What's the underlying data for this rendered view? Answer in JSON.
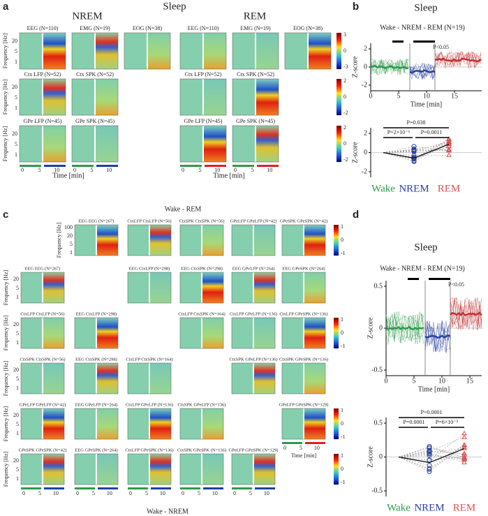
{
  "panel_a": {
    "label": "a",
    "title": "Sleep",
    "nrem": "NREM",
    "rem": "REM",
    "rows": [
      [
        "EEG (N=110)",
        "EMG (N=19)",
        "EOG (N=38)"
      ],
      [
        "Ctx LFP (N=52)",
        "Ctx SPK (N=52)"
      ],
      [
        "GPe LFP (N=45)",
        "GPe SPK (N=45)"
      ]
    ],
    "y_label": "Frequency [Hz]",
    "yticks": [
      "20",
      "5",
      "1"
    ],
    "x_label": "Time [min]",
    "xticks": [
      "0",
      "5",
      "10"
    ],
    "colorbars": [
      [
        "3",
        "0",
        "-3"
      ],
      [
        "2",
        "0",
        "-2"
      ],
      [
        "2",
        "0",
        "-2"
      ]
    ]
  },
  "panel_b": {
    "label": "b",
    "title": "Sleep",
    "subtitle": "Wake - NREM - REM (N=19)",
    "top": {
      "y_label": "Z-score",
      "yticks": [
        "2",
        "0",
        "-2"
      ],
      "x_label": "Time [min]",
      "xticks": [
        "0",
        "5",
        "10",
        "15"
      ],
      "annotation": "P<0.05"
    },
    "bottom": {
      "y_label": "Z-score",
      "yticks": [
        "2",
        "0",
        "-2"
      ],
      "categories": [
        "Wake",
        "NREM",
        "REM"
      ],
      "p_values": [
        "P=0.038",
        "P=2×10⁻⁶",
        "P=0.0011"
      ]
    }
  },
  "panel_c": {
    "label": "c",
    "title_rem": "Wake - REM",
    "title_nrem": "Wake - NREM",
    "rem_rows": [
      [
        "EEG EEG (N=267)",
        "CtxLFP CtxLFP (N=56)",
        "CtxSPK CtxSPK (N=56)",
        "GPeLFP GPeLFP (N=42)",
        "GPeSPK GPeSPK (N=42)"
      ],
      [
        "EEG CtxLFP (N=298)",
        "EEG CtxSPK (N=298)",
        "EEG GPeLFP (N=264)",
        "EEG GPeSPK (N=264)"
      ],
      [
        "CtxLFP CtxSPK (N=164)",
        "CtxLFP GPeLFP (N=136)",
        "CtxLFP GPeSPK (N=136)"
      ],
      [
        "CtxSPK GPeLFP (N=136)",
        "CtxSPK GPeSPK (N=136)"
      ],
      [
        "GPeLFP GPeSPK (N=129)"
      ]
    ],
    "nrem_rows": [
      [
        "EEG EEG (N=267)"
      ],
      [
        "CtxLFP CtxLFP (N=56)",
        "EEG CtxLFP (N=298)"
      ],
      [
        "CtxSPK CtxSPK (N=56)",
        "EEG CtxSPK (N=298)",
        "CtxLFP CtxSPK (N=164)"
      ],
      [
        "GPeLFP GPeLFP (N=42)",
        "EEG GPeLFP (N=264)",
        "CtxLFP GPeLFP (N=136)",
        "CtxSPK GPeLFP (N=136)"
      ],
      [
        "GPeSPK GPeSPK (N=42)",
        "EEG GPeSPK (N=264)",
        "CtxLFP GPeSPK (N=136)",
        "CtxSPK GPeSPK (N=136)",
        "GPeLFP GPeSPK (N=129)"
      ]
    ],
    "y_label": "Frequency [Hz]",
    "yticks_top": [
      "100",
      "20",
      "5",
      "1"
    ],
    "yticks": [
      "20",
      "5",
      "1"
    ],
    "x_label": "Time [min]",
    "xticks": [
      "0",
      "5",
      "10"
    ],
    "colorbars": [
      [
        "1",
        "0",
        "-1"
      ],
      [
        "1",
        "0",
        "-1"
      ],
      [
        "1",
        "0",
        "-1"
      ],
      [
        "1",
        "0",
        "-1"
      ]
    ]
  },
  "panel_d": {
    "label": "d",
    "title": "Sleep",
    "subtitle": "Wake - NREM - REM (N=19)",
    "top": {
      "y_label": "Z-score",
      "yticks": [
        "0.5",
        "0",
        "-0.5"
      ],
      "x_label": "Time [min]",
      "xticks": [
        "0",
        "5",
        "10",
        "15"
      ],
      "annotation": "P<0.05"
    },
    "bottom": {
      "y_label": "Z-score",
      "yticks": [
        "0.5",
        "0",
        "-0.5"
      ],
      "categories": [
        "Wake",
        "NREM",
        "REM"
      ],
      "p_values": [
        "P=0.0001",
        "P=0.0001",
        "P=6×10⁻⁵"
      ]
    }
  }
}
